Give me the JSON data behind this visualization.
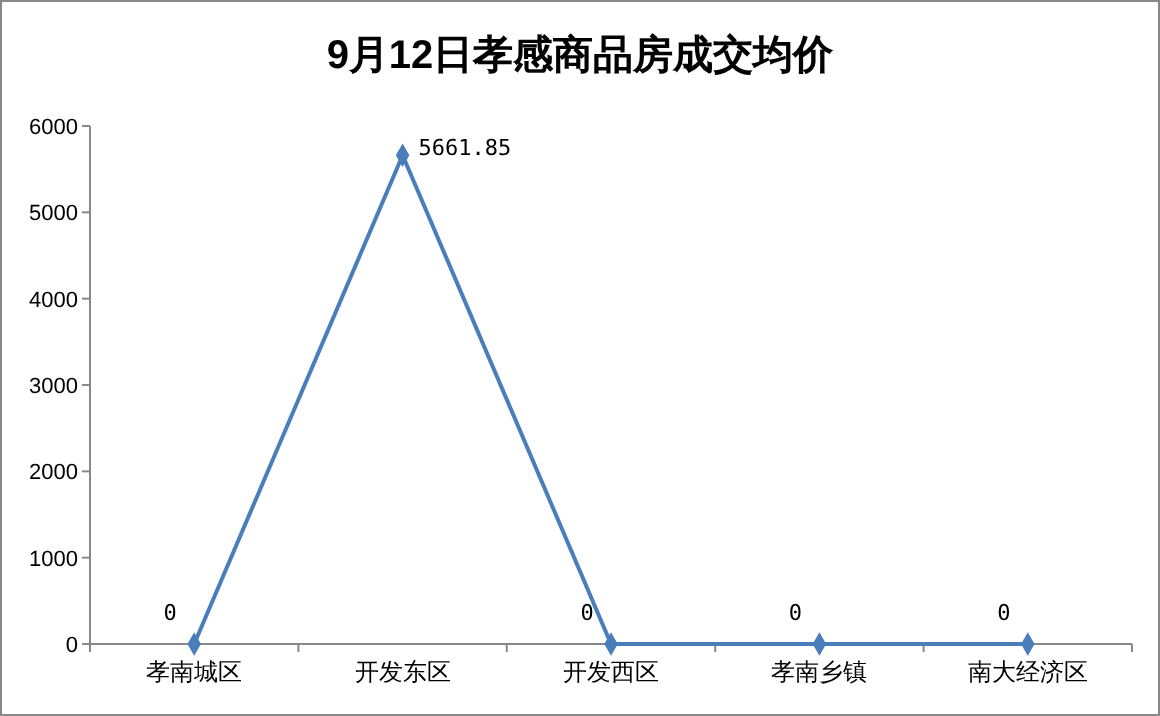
{
  "chart_data": {
    "type": "line",
    "title": "9月12日孝感商品房成交均价",
    "categories": [
      "孝南城区",
      "开发东区",
      "开发西区",
      "孝南乡镇",
      "南大经济区"
    ],
    "series": [
      {
        "color": "#4a7ebb",
        "values": [
          0,
          5661.85,
          0,
          0,
          0
        ]
      }
    ],
    "ylim": [
      0,
      6000
    ],
    "yticks": [
      0,
      1000,
      2000,
      3000,
      4000,
      5000,
      6000
    ],
    "data_labels": true,
    "marker": "diamond"
  }
}
